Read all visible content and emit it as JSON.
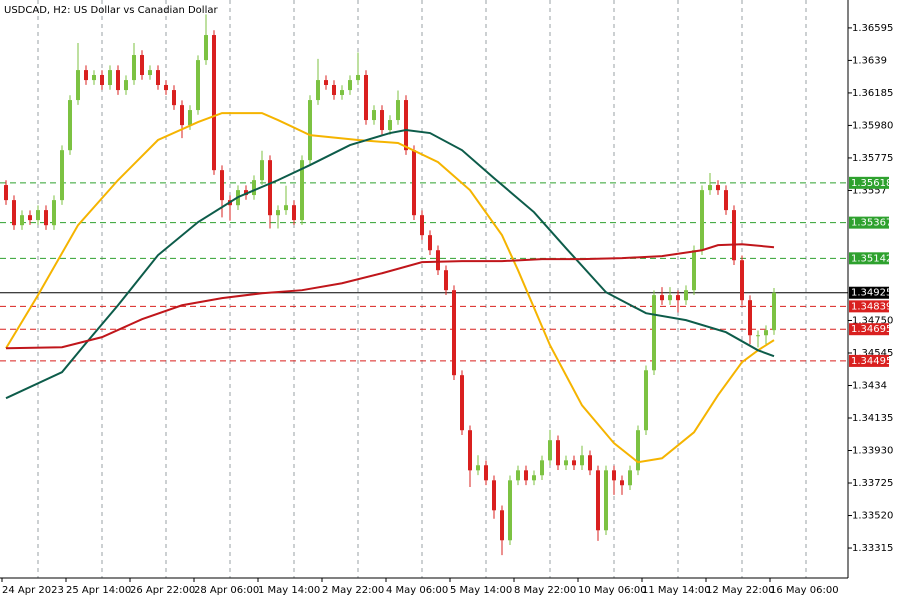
{
  "chart_data": {
    "type": "candlestick",
    "title": "USDCAD, H2:  US Dollar vs Canadian Dollar",
    "x_labels": [
      "24 Apr 2023",
      "25 Apr 14:00",
      "26 Apr 22:00",
      "28 Apr 06:00",
      "1 May 14:00",
      "2 May 22:00",
      "4 May 06:00",
      "5 May 14:00",
      "8 May 22:00",
      "10 May 06:00",
      "11 May 14:00",
      "12 May 22:00",
      "16 May 06:00"
    ],
    "ylim": [
      1.33126,
      1.36771
    ],
    "yticks": [
      1.36595,
      1.3639,
      1.36185,
      {
        "value": 1.3598,
        "label": "1.35980"
      },
      1.35775,
      1.3557,
      {
        "value": 1.3475,
        "label": "1.34750"
      },
      1.34545,
      1.3434,
      1.34135,
      {
        "value": 1.3393,
        "label": "1.33930"
      },
      1.33725,
      {
        "value": 1.3352,
        "label": "1.33520"
      },
      1.33315
    ],
    "grid": true,
    "up_color": "#7cc242",
    "down_color": "#d9201f",
    "open": [
      1.35604,
      1.35509,
      1.35351,
      1.35414,
      1.35383,
      1.35446,
      1.35351,
      1.35509,
      1.35824,
      1.3614,
      1.36329,
      1.36266,
      1.36298,
      1.36235,
      1.36329,
      1.36203,
      1.36266,
      1.36424,
      1.36298,
      1.36329,
      1.36235,
      1.36203,
      1.36108,
      1.35982,
      1.36077,
      1.36392,
      1.3655,
      1.35698,
      1.35509,
      1.35477,
      1.35572,
      1.35541,
      1.35635,
      1.35761,
      1.35414,
      1.35446,
      1.35477,
      1.35383,
      1.35761,
      1.3614,
      1.36266,
      1.36235,
      1.36172,
      1.36203,
      1.36266,
      1.36298,
      1.36014,
      1.36077,
      1.35951,
      1.36014,
      1.3614,
      1.35824,
      1.35414,
      1.35288,
      1.35193,
      1.35067,
      1.34941,
      1.34405,
      1.34058,
      1.33805,
      1.33837,
      1.33742,
      1.33553,
      1.33364,
      1.33742,
      1.33805,
      1.33742,
      1.33774,
      1.33868,
      1.33995,
      1.33837,
      1.33868,
      1.33837,
      1.339,
      1.33805,
      1.33427,
      1.33805,
      1.33742,
      1.33711,
      1.33805,
      1.34058,
      1.34436,
      1.3491,
      1.34878,
      1.3491,
      1.34878,
      1.34941,
      1.35193,
      1.35572,
      1.35604,
      1.35572,
      1.35446,
      1.3513,
      1.34878,
      1.34657,
      1.34657,
      1.34689
    ],
    "high": [
      1.35634,
      1.35539,
      1.35444,
      1.35444,
      1.35476,
      1.35476,
      1.35539,
      1.35854,
      1.3617,
      1.365,
      1.36359,
      1.36328,
      1.36328,
      1.36359,
      1.36359,
      1.36296,
      1.365,
      1.36454,
      1.36359,
      1.36359,
      1.36265,
      1.36233,
      1.36138,
      1.36107,
      1.36422,
      1.3668,
      1.3658,
      1.35728,
      1.35539,
      1.35602,
      1.35602,
      1.35665,
      1.3582,
      1.35791,
      1.35476,
      1.356,
      1.35507,
      1.35791,
      1.3617,
      1.364,
      1.36296,
      1.36265,
      1.36233,
      1.36296,
      1.3644,
      1.36328,
      1.36107,
      1.36107,
      1.36044,
      1.362,
      1.3617,
      1.35854,
      1.35444,
      1.35318,
      1.35223,
      1.35097,
      1.34971,
      1.34435,
      1.34088,
      1.339,
      1.33867,
      1.33772,
      1.33583,
      1.33772,
      1.33835,
      1.33835,
      1.33804,
      1.33898,
      1.3406,
      1.34025,
      1.33898,
      1.33898,
      1.3396,
      1.3393,
      1.33835,
      1.33835,
      1.33835,
      1.33772,
      1.33835,
      1.34088,
      1.34466,
      1.3494,
      1.3496,
      1.3496,
      1.3494,
      1.34971,
      1.35223,
      1.35602,
      1.3568,
      1.35634,
      1.35602,
      1.35476,
      1.3516,
      1.34908,
      1.34687,
      1.34719,
      1.34955
    ],
    "low": [
      1.35479,
      1.35321,
      1.35321,
      1.35353,
      1.35353,
      1.35321,
      1.35321,
      1.35479,
      1.35794,
      1.3611,
      1.36236,
      1.36236,
      1.36205,
      1.36205,
      1.36173,
      1.36173,
      1.36236,
      1.36268,
      1.36268,
      1.36205,
      1.36173,
      1.36078,
      1.359,
      1.35952,
      1.36047,
      1.36362,
      1.35668,
      1.354,
      1.3538,
      1.35447,
      1.35511,
      1.35511,
      1.35605,
      1.3533,
      1.3533,
      1.35416,
      1.35353,
      1.35353,
      1.35731,
      1.3611,
      1.36205,
      1.36142,
      1.36142,
      1.36173,
      1.36236,
      1.35984,
      1.35984,
      1.35921,
      1.35921,
      1.35984,
      1.35794,
      1.35384,
      1.35258,
      1.35163,
      1.35037,
      1.34911,
      1.34375,
      1.34028,
      1.337,
      1.33775,
      1.33712,
      1.335,
      1.3327,
      1.33334,
      1.33712,
      1.33712,
      1.33712,
      1.33744,
      1.33838,
      1.33807,
      1.33807,
      1.33807,
      1.33807,
      1.33775,
      1.3336,
      1.33397,
      1.3365,
      1.3365,
      1.33681,
      1.33775,
      1.34028,
      1.34406,
      1.34848,
      1.34848,
      1.348,
      1.34848,
      1.34911,
      1.35163,
      1.35542,
      1.35542,
      1.35416,
      1.351,
      1.34848,
      1.346,
      1.3458,
      1.346,
      1.34659
    ],
    "close": [
      1.35509,
      1.35351,
      1.35414,
      1.35383,
      1.35446,
      1.35351,
      1.35509,
      1.35824,
      1.3614,
      1.36329,
      1.36266,
      1.36298,
      1.36235,
      1.36329,
      1.36203,
      1.36266,
      1.36424,
      1.36298,
      1.36329,
      1.36235,
      1.36203,
      1.36108,
      1.35982,
      1.36077,
      1.36392,
      1.3655,
      1.35698,
      1.35509,
      1.35477,
      1.35572,
      1.35541,
      1.35635,
      1.35761,
      1.35414,
      1.35446,
      1.35477,
      1.35383,
      1.35761,
      1.3614,
      1.36266,
      1.36235,
      1.36172,
      1.36203,
      1.36266,
      1.36298,
      1.36014,
      1.36077,
      1.35951,
      1.36014,
      1.3614,
      1.35824,
      1.35414,
      1.35288,
      1.35193,
      1.35067,
      1.34941,
      1.34405,
      1.34058,
      1.33805,
      1.33837,
      1.33742,
      1.33553,
      1.33364,
      1.33742,
      1.33805,
      1.33742,
      1.33774,
      1.33868,
      1.33995,
      1.33837,
      1.33868,
      1.33837,
      1.339,
      1.33805,
      1.33427,
      1.33805,
      1.33742,
      1.33711,
      1.33805,
      1.34058,
      1.34436,
      1.3491,
      1.34878,
      1.3491,
      1.34878,
      1.34941,
      1.35193,
      1.35572,
      1.35604,
      1.35572,
      1.35446,
      1.3513,
      1.34878,
      1.34657,
      1.34657,
      1.34689,
      1.34925
    ],
    "moving_averages": [
      {
        "color": "#f5b400",
        "x": [
          0,
          4,
          9,
          14,
          19,
          24,
          27,
          32,
          34,
          38,
          44,
          49,
          54,
          58,
          62,
          64,
          68,
          72,
          76,
          79,
          82,
          86,
          89,
          92,
          94,
          96
        ],
        "values": [
          1.34575,
          1.3491,
          1.35351,
          1.35635,
          1.35888,
          1.36001,
          1.36058,
          1.36058,
          1.36014,
          1.35919,
          1.35888,
          1.35869,
          1.35749,
          1.35572,
          1.35288,
          1.35067,
          1.34594,
          1.34215,
          1.33976,
          1.33856,
          1.33881,
          1.34045,
          1.34279,
          1.34487,
          1.34562,
          1.34626
        ]
      },
      {
        "color": "#0d5c4a",
        "x": [
          0,
          7,
          10,
          14,
          19,
          24,
          29,
          34,
          38,
          43,
          48,
          50,
          53,
          57,
          61,
          66,
          70,
          75,
          80,
          85,
          90,
          94,
          96
        ],
        "values": [
          1.3426,
          1.34424,
          1.34607,
          1.34846,
          1.35162,
          1.3537,
          1.35528,
          1.35635,
          1.3573,
          1.35856,
          1.35932,
          1.35951,
          1.35932,
          1.35824,
          1.35648,
          1.35433,
          1.35206,
          1.34928,
          1.34796,
          1.34752,
          1.34676,
          1.34562,
          1.34525
        ]
      },
      {
        "color": "#c0161b",
        "x": [
          0,
          7,
          12,
          17,
          22,
          27,
          32,
          37,
          42,
          47,
          52,
          57,
          62,
          67,
          72,
          77,
          82,
          87,
          89,
          92,
          96
        ],
        "values": [
          1.34575,
          1.34581,
          1.34645,
          1.34758,
          1.34846,
          1.34891,
          1.34922,
          1.34941,
          1.34985,
          1.35048,
          1.35118,
          1.35124,
          1.35124,
          1.35137,
          1.35137,
          1.35143,
          1.35156,
          1.35193,
          1.35225,
          1.35231,
          1.35212
        ]
      }
    ],
    "levels": [
      {
        "value": 1.35618,
        "color": "#2ea12e",
        "style": "dashed"
      },
      {
        "value": 1.35367,
        "color": "#2ea12e",
        "style": "dashed"
      },
      {
        "value": 1.35142,
        "color": "#2ea12e",
        "style": "dashed"
      },
      {
        "value": 1.34925,
        "color": "#000000",
        "style": "solid"
      },
      {
        "value": 1.34839,
        "color": "#d9201f",
        "style": "dashed"
      },
      {
        "value": 1.34695,
        "color": "#d9201f",
        "style": "dashed"
      },
      {
        "value": 1.34495,
        "color": "#d9201f",
        "style": "dashed"
      }
    ]
  }
}
